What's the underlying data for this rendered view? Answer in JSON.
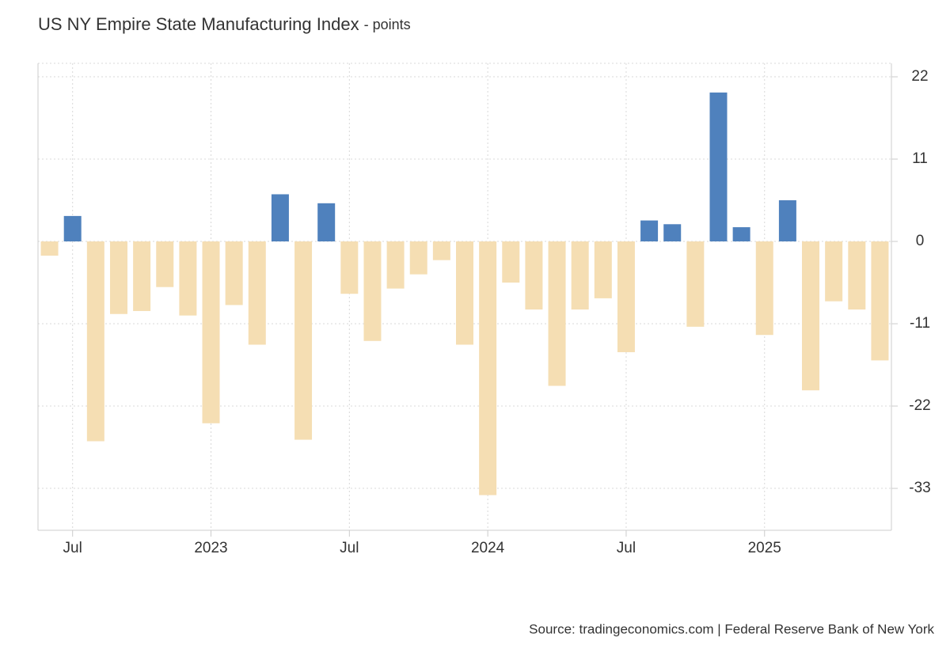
{
  "chart_data": {
    "type": "bar",
    "title": "US NY Empire State Manufacturing Index",
    "subtitle": "- points",
    "source": "Source: tradingeconomics.com | Federal Reserve Bank of New York",
    "categories": [
      null,
      "Jul",
      null,
      null,
      null,
      null,
      null,
      "2023",
      null,
      null,
      null,
      null,
      null,
      "Jul",
      null,
      null,
      null,
      null,
      null,
      "2024",
      null,
      null,
      null,
      null,
      null,
      "Jul",
      null,
      null,
      null,
      null,
      null,
      "2025",
      null,
      null,
      null,
      null,
      null
    ],
    "values": [
      -1.9,
      3.4,
      -26.7,
      -9.7,
      -9.3,
      -6.1,
      -9.9,
      -24.3,
      -8.5,
      -13.8,
      6.3,
      -26.5,
      5.1,
      -7.0,
      -13.3,
      -6.3,
      -4.4,
      -2.5,
      -13.8,
      -33.9,
      -5.5,
      -9.1,
      -19.3,
      -9.1,
      -7.6,
      -14.8,
      2.8,
      2.3,
      -11.4,
      19.9,
      1.9,
      -12.5,
      5.5,
      -19.9,
      -8.0,
      -9.1,
      -15.9
    ],
    "color_positive": "#4f81bd",
    "color_negative": "#f5deb3",
    "ylim": [
      -38.6,
      23.8
    ],
    "yticks": [
      22,
      11,
      0,
      -11,
      -22,
      -33
    ],
    "grid": true
  }
}
